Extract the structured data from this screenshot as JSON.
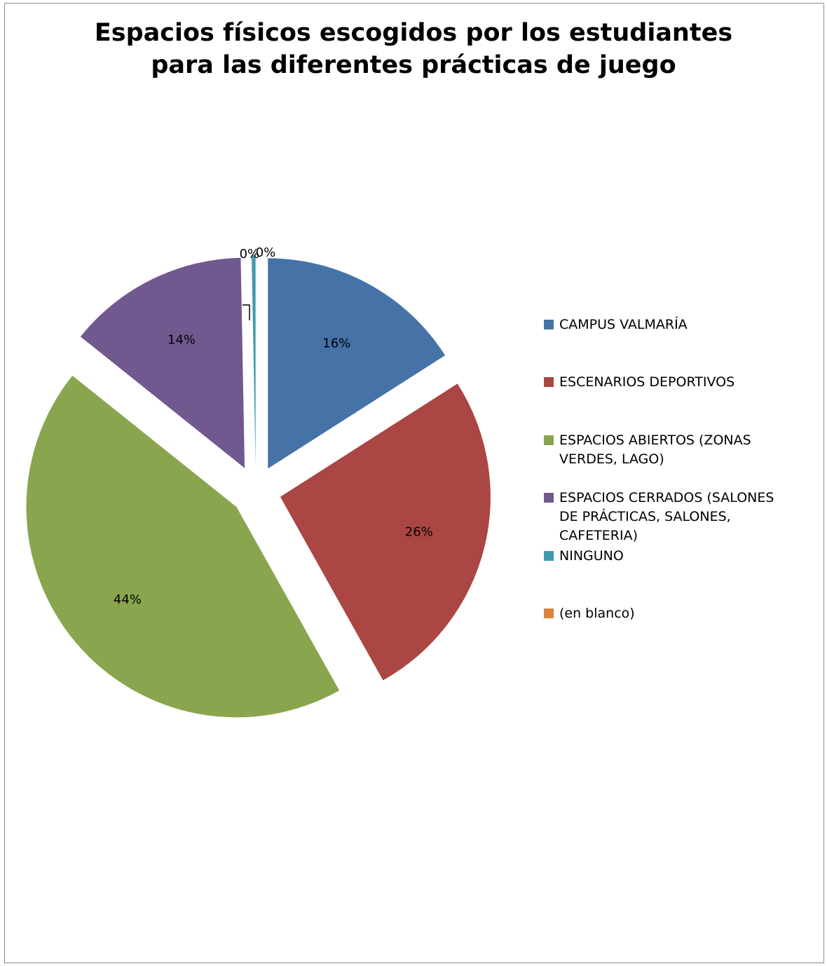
{
  "chart_data": {
    "type": "pie",
    "title_lines": [
      "Espacios físicos escogidos por los estudiantes",
      "para las diferentes prácticas de juego"
    ],
    "slices": [
      {
        "name": "CAMPUS VALMARÍA",
        "legend_lines": [
          "CAMPUS VALMARÍA"
        ],
        "value": 16,
        "label": "16%",
        "color": "#4572A7"
      },
      {
        "name": "ESCENARIOS DEPORTIVOS",
        "legend_lines": [
          "ESCENARIOS DEPORTIVOS"
        ],
        "value": 26,
        "label": "26%",
        "color": "#AA4643"
      },
      {
        "name": "ESPACIOS ABIERTOS (ZONAS VERDES, LAGO)",
        "legend_lines": [
          "ESPACIOS ABIERTOS (ZONAS",
          "VERDES, LAGO)"
        ],
        "value": 44,
        "label": "44%",
        "color": "#89A54E"
      },
      {
        "name": "ESPACIOS CERRADOS (SALONES DE PRÁCTICAS, SALONES, CAFETERIA)",
        "legend_lines": [
          "ESPACIOS CERRADOS (SALONES",
          "DE PRÁCTICAS, SALONES,",
          "CAFETERIA)"
        ],
        "value": 14,
        "label": "14%",
        "color": "#71588F"
      },
      {
        "name": "NINGUNO",
        "legend_lines": [
          "NINGUNO"
        ],
        "value": 0.3,
        "label": "0%",
        "color": "#4198AF"
      },
      {
        "name": "(en blanco)",
        "legend_lines": [
          "(en blanco)"
        ],
        "value": 0,
        "label": "0%",
        "color": "#DB843D"
      }
    ],
    "exploded": true,
    "legend_position": "right"
  }
}
